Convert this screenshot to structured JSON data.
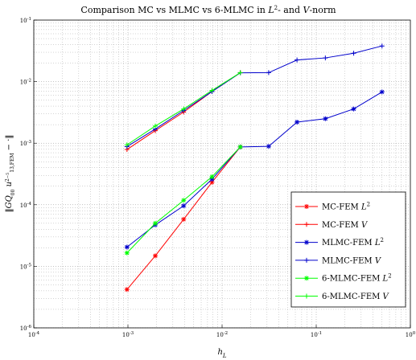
{
  "chart_data": {
    "type": "line",
    "title": "Comparison MC vs MLMC vs 6-MLMC in L²- and V-norm",
    "xlabel": "h_L",
    "ylabel": "||GQ_{00} u^{2^{-5}}_{13,FEM} − ·||",
    "xscale": "log",
    "yscale": "log",
    "xlim": [
      0.0001,
      1
    ],
    "ylim": [
      1e-06,
      0.1
    ],
    "xticks": [
      {
        "value": 0.0001,
        "base": "10",
        "exp": "-4"
      },
      {
        "value": 0.001,
        "base": "10",
        "exp": "-3"
      },
      {
        "value": 0.01,
        "base": "10",
        "exp": "-2"
      },
      {
        "value": 0.1,
        "base": "10",
        "exp": "-1"
      },
      {
        "value": 1,
        "base": "10",
        "exp": "0"
      }
    ],
    "yticks": [
      {
        "value": 1e-06,
        "base": "10",
        "exp": "-6"
      },
      {
        "value": 1e-05,
        "base": "10",
        "exp": "-5"
      },
      {
        "value": 0.0001,
        "base": "10",
        "exp": "-4"
      },
      {
        "value": 0.001,
        "base": "10",
        "exp": "-3"
      },
      {
        "value": 0.01,
        "base": "10",
        "exp": "-2"
      },
      {
        "value": 0.1,
        "base": "10",
        "exp": "-1"
      }
    ],
    "grid": true,
    "legend_position": "bottom-right",
    "series": [
      {
        "name": "MC-FEM L²",
        "color": "#ff0000",
        "marker": "star",
        "x": [
          0.000977,
          0.001953,
          0.003906,
          0.0078125,
          0.015625
        ],
        "y": [
          4.2e-06,
          1.48e-05,
          5.8e-05,
          0.000232,
          0.00087
        ]
      },
      {
        "name": "MC-FEM V",
        "color": "#ff0000",
        "marker": "plus",
        "x": [
          0.000977,
          0.001953,
          0.003906,
          0.0078125,
          0.015625
        ],
        "y": [
          0.00079,
          0.0016,
          0.0032,
          0.0069,
          0.014
        ]
      },
      {
        "name": "MLMC-FEM L²",
        "color": "#0000cc",
        "marker": "star",
        "x": [
          0.000977,
          0.001953,
          0.003906,
          0.0078125,
          0.015625,
          0.03125,
          0.0625,
          0.125,
          0.25,
          0.5
        ],
        "y": [
          2.05e-05,
          4.7e-05,
          9.6e-05,
          0.00026,
          0.00087,
          0.00089,
          0.0022,
          0.0025,
          0.0036,
          0.0068
        ]
      },
      {
        "name": "MLMC-FEM V",
        "color": "#0000cc",
        "marker": "plus",
        "x": [
          0.000977,
          0.001953,
          0.003906,
          0.0078125,
          0.015625,
          0.03125,
          0.0625,
          0.125,
          0.25,
          0.5
        ],
        "y": [
          0.00088,
          0.0017,
          0.0034,
          0.0069,
          0.0139,
          0.014,
          0.0225,
          0.0243,
          0.0289,
          0.038
        ]
      },
      {
        "name": "6-MLMC-FEM L²",
        "color": "#00ff00",
        "marker": "star",
        "x": [
          0.000977,
          0.001953,
          0.003906,
          0.0078125,
          0.015625
        ],
        "y": [
          1.65e-05,
          5e-05,
          0.000118,
          0.000285,
          0.00087
        ]
      },
      {
        "name": "6-MLMC-FEM V",
        "color": "#00ff00",
        "marker": "plus",
        "x": [
          0.000977,
          0.001953,
          0.003906,
          0.0078125,
          0.015625
        ],
        "y": [
          0.00094,
          0.0019,
          0.0036,
          0.0072,
          0.014
        ]
      }
    ]
  }
}
